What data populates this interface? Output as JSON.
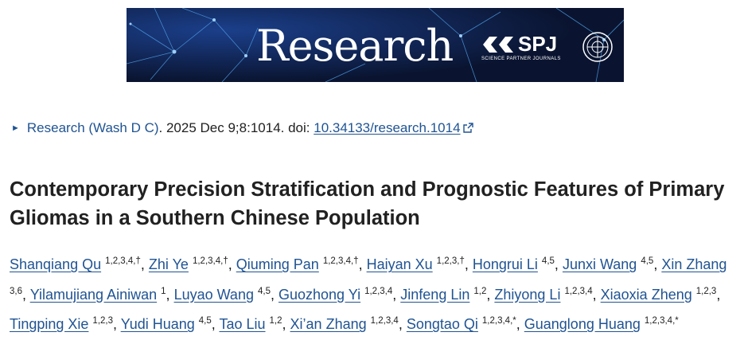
{
  "banner": {
    "journal_name": "Research",
    "publisher_logo_text": "SPJ",
    "publisher_logo_subtitle": "SCIENCE PARTNER JOURNALS"
  },
  "citation": {
    "journal_link": "Research (Wash D C)",
    "details": ". 2025 Dec 9;8:1014. doi: ",
    "doi": "10.34133/research.1014"
  },
  "article": {
    "title": "Contemporary Precision Stratification and Prognostic Features of Primary Gliomas in a Southern Chinese Population"
  },
  "authors": [
    {
      "name": "Shanqiang Qu",
      "affil": "1,2,3,4,†"
    },
    {
      "name": "Zhi Ye",
      "affil": "1,2,3,4,†"
    },
    {
      "name": "Qiuming Pan",
      "affil": "1,2,3,4,†"
    },
    {
      "name": "Haiyan Xu",
      "affil": "1,2,3,†"
    },
    {
      "name": "Hongrui Li",
      "affil": "4,5"
    },
    {
      "name": "Junxi Wang",
      "affil": "4,5"
    },
    {
      "name": "Xin Zhang",
      "affil": "3,6"
    },
    {
      "name": "Yilamujiang Ainiwan",
      "affil": "1"
    },
    {
      "name": "Luyao Wang",
      "affil": "4,5"
    },
    {
      "name": "Guozhong Yi",
      "affil": "1,2,3,4"
    },
    {
      "name": "Jinfeng Lin",
      "affil": "1,2"
    },
    {
      "name": "Zhiyong Li",
      "affil": "1,2,3,4"
    },
    {
      "name": "Xiaoxia Zheng",
      "affil": "1,2,3"
    },
    {
      "name": "Tingping Xie",
      "affil": "1,2,3"
    },
    {
      "name": "Yudi Huang",
      "affil": "4,5"
    },
    {
      "name": "Tao Liu",
      "affil": "1,2"
    },
    {
      "name": "Xi’an Zhang",
      "affil": "1,2,3,4"
    },
    {
      "name": "Songtao Qi",
      "affil": "1,2,3,4,*"
    },
    {
      "name": "Guanglong Huang",
      "affil": "1,2,3,4,*"
    }
  ]
}
